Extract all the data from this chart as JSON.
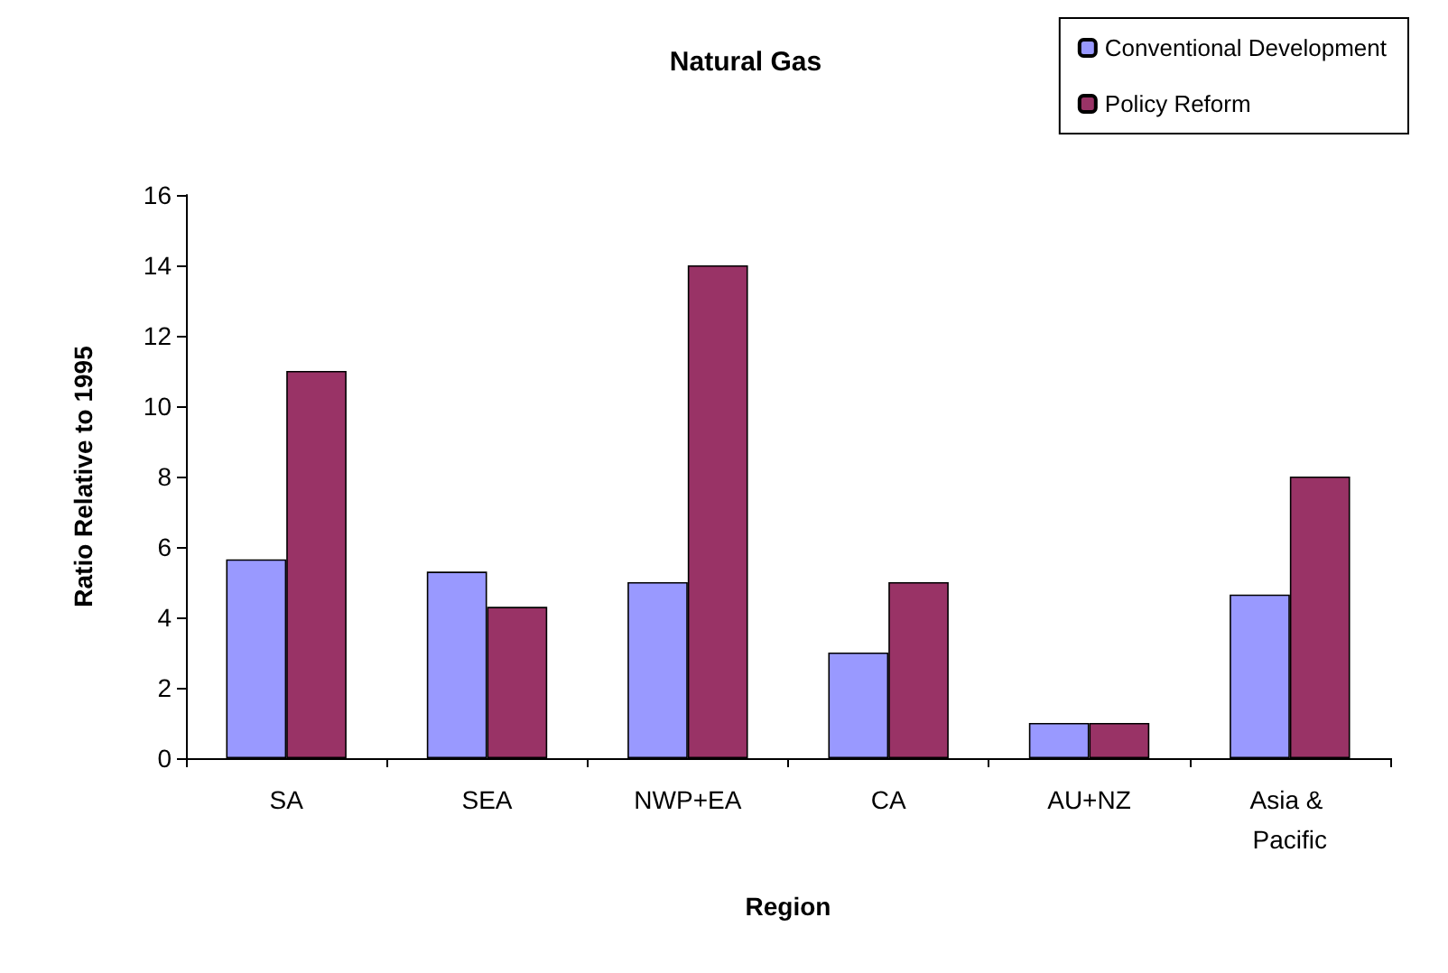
{
  "chart_data": {
    "type": "bar",
    "title": "Natural Gas",
    "xlabel": "Region",
    "ylabel": "Ratio Relative to 1995",
    "categories": [
      "SA",
      "SEA",
      "NWP+EA",
      "CA",
      "AU+NZ",
      "Asia & Pacific"
    ],
    "series": [
      {
        "name": "Conventional Development",
        "color": "#9999ff",
        "values": [
          5.65,
          5.3,
          5,
          3,
          1,
          4.65
        ]
      },
      {
        "name": "Policy Reform",
        "color": "#993366",
        "values": [
          11,
          4.3,
          14,
          5,
          1,
          8
        ]
      }
    ],
    "ylim": [
      0,
      16
    ],
    "yticks": [
      0,
      2,
      4,
      6,
      8,
      10,
      12,
      14,
      16
    ],
    "grid": false,
    "legend": "top right"
  }
}
